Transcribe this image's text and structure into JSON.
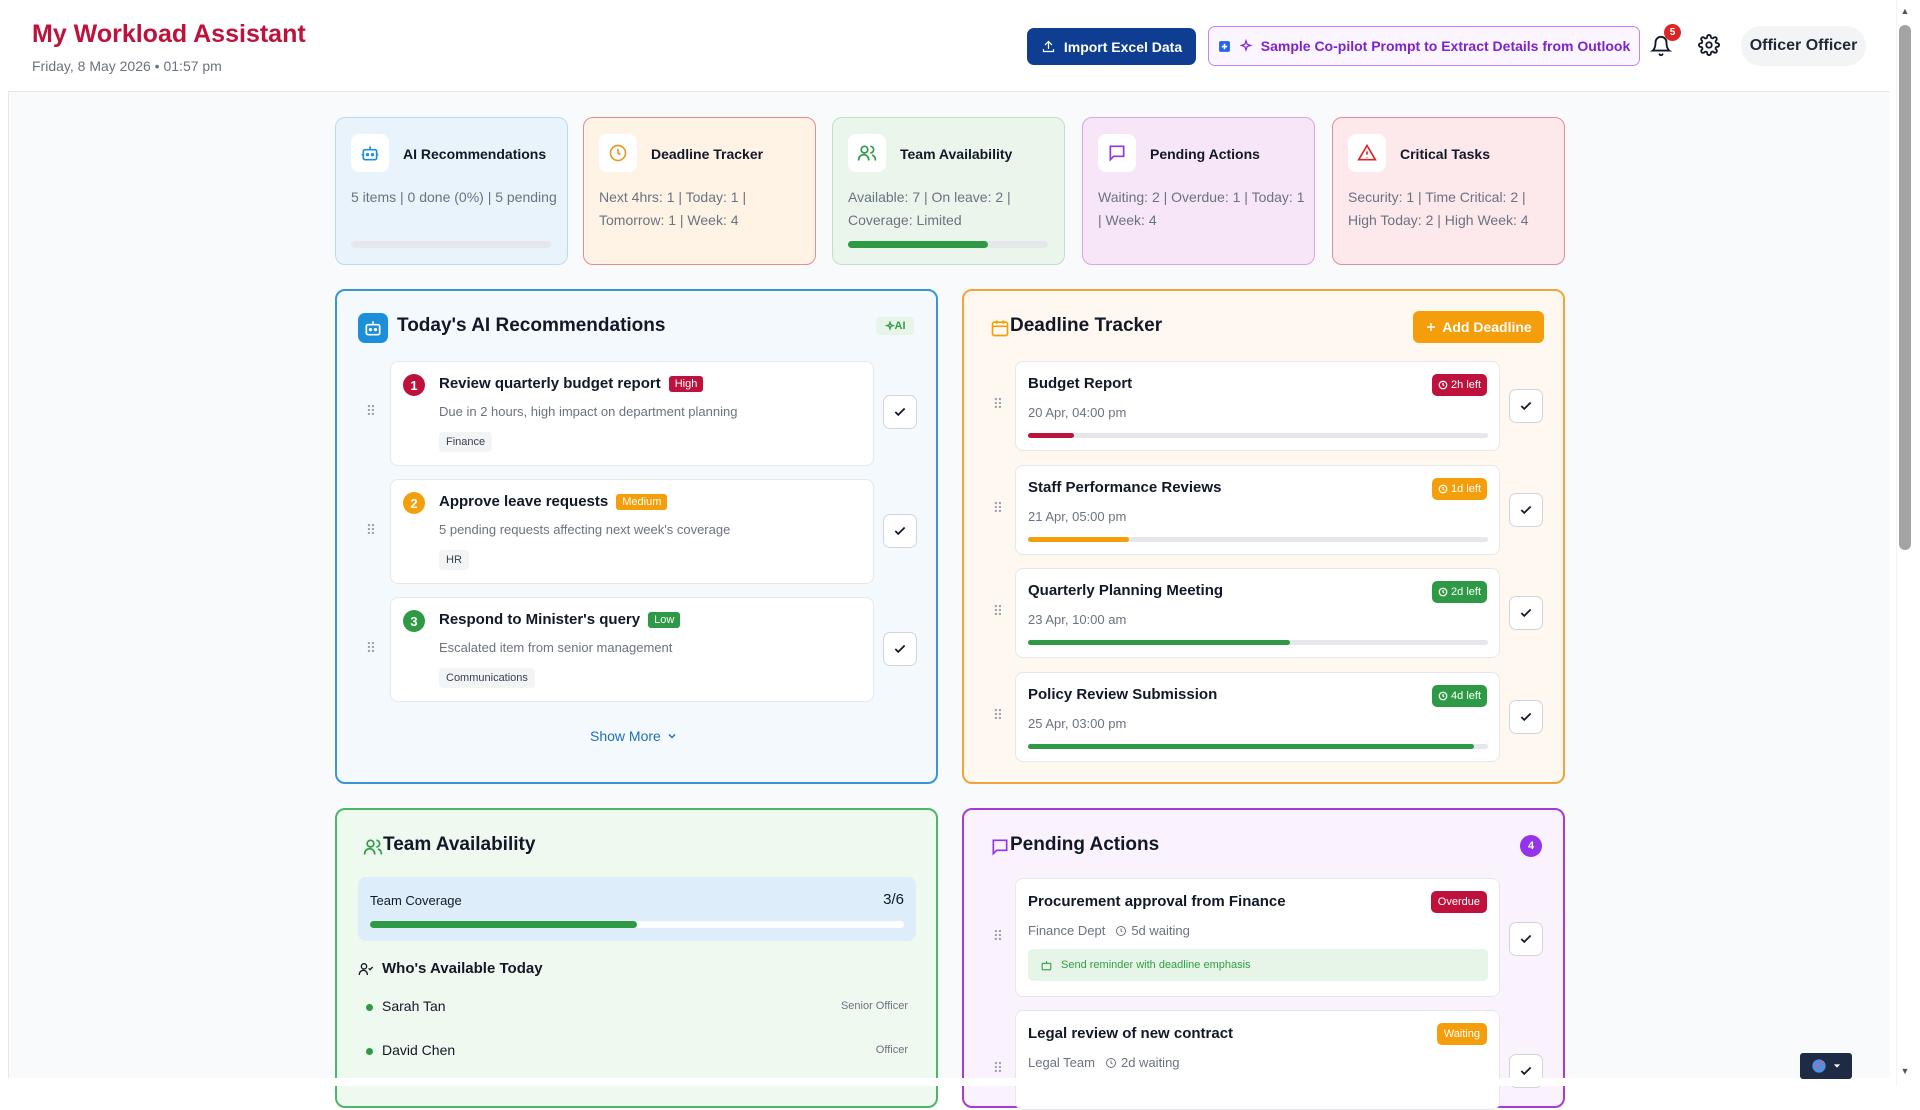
{
  "header": {
    "title": "My Workload Assistant",
    "date": "Friday, 8 May 2026 • 01:57 pm",
    "import_label": "Import Excel Data",
    "prompt_label": "Sample Co-pilot Prompt to Extract Details from Outlook",
    "notification_count": "5",
    "user_name": "Officer Officer"
  },
  "summary": [
    {
      "title": "AI Recommendations",
      "text": "5 items | 0 done (0%) | 5 pending",
      "icon": "robot-icon",
      "progress": 0
    },
    {
      "title": "Deadline Tracker",
      "text": "Next 4hrs: 1 | Today: 1 | Tomorrow: 1 | Week: 4",
      "icon": "clock-icon"
    },
    {
      "title": "Team Availability",
      "text": "Available: 7 | On leave: 2 | Coverage: Limited",
      "icon": "users-icon",
      "progress": 0.7
    },
    {
      "title": "Pending Actions",
      "text": "Waiting: 2 | Overdue: 1 | Today: 1 | Week: 4",
      "icon": "message-icon"
    },
    {
      "title": "Critical Tasks",
      "text": "Security: 1 | Time Critical: 2 | High Today: 2 | High Week: 4",
      "icon": "alert-triangle-icon"
    }
  ],
  "recommendations": {
    "title": "Today's AI Recommendations",
    "badge": "AI",
    "show_more": "Show More",
    "items": [
      {
        "num": "1",
        "title": "Review quarterly budget report",
        "priority": "High",
        "desc": "Due in 2 hours, high impact on department planning",
        "tag": "Finance"
      },
      {
        "num": "2",
        "title": "Approve leave requests",
        "priority": "Medium",
        "desc": "5 pending requests affecting next week's coverage",
        "tag": "HR"
      },
      {
        "num": "3",
        "title": "Respond to Minister's query",
        "priority": "Low",
        "desc": "Escalated item from senior management",
        "tag": "Communications"
      }
    ]
  },
  "deadlines": {
    "title": "Deadline Tracker",
    "add_label": "Add Deadline",
    "items": [
      {
        "title": "Budget Report",
        "date": "20 Apr, 04:00 pm",
        "left": "2h left",
        "color": "#be123c",
        "progress": 0.1
      },
      {
        "title": "Staff Performance Reviews",
        "date": "21 Apr, 05:00 pm",
        "left": "1d left",
        "color": "#f59e0b",
        "progress": 0.22
      },
      {
        "title": "Quarterly Planning Meeting",
        "date": "23 Apr, 10:00 am",
        "left": "2d left",
        "color": "#2e9a45",
        "progress": 0.57
      },
      {
        "title": "Policy Review Submission",
        "date": "25 Apr, 03:00 pm",
        "left": "4d left",
        "color": "#2e9a45",
        "progress": 0.97
      }
    ]
  },
  "team": {
    "title": "Team Availability",
    "coverage_label": "Team Coverage",
    "coverage_value": "3/6",
    "coverage_progress": 0.5,
    "who_label": "Who's Available Today",
    "people": [
      {
        "name": "Sarah Tan",
        "role": "Senior Officer"
      },
      {
        "name": "David Chen",
        "role": "Officer"
      }
    ]
  },
  "pending": {
    "title": "Pending Actions",
    "count": "4",
    "items": [
      {
        "title": "Procurement approval from Finance",
        "dept": "Finance Dept",
        "wait": "5d waiting",
        "status": "Overdue",
        "color": "#be123c",
        "suggestion": "Send reminder with deadline emphasis"
      },
      {
        "title": "Legal review of new contract",
        "dept": "Legal Team",
        "wait": "2d waiting",
        "status": "Waiting",
        "color": "#f59e0b"
      }
    ]
  },
  "colors": {
    "brand": "#be123c",
    "primary": "#0f3d91",
    "ai_blue": "#1d8fd8",
    "deadline_orange": "#f59e0b",
    "team_green": "#2e9a45",
    "pending_purple": "#9333ea"
  }
}
